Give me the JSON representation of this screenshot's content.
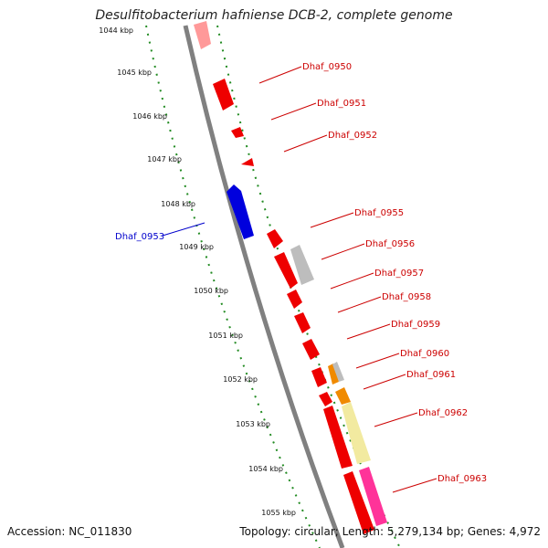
{
  "title": "Desulfitobacterium hafniense DCB-2, complete genome",
  "footer": {
    "accession": "Accession: NC_011830",
    "summary": "Topology: circular; Length: 5,279,134 bp; Genes: 4,972"
  },
  "scale_labels": [
    "1044 kbp",
    "1045 kbp",
    "1046 kbp",
    "1047 kbp",
    "1048 kbp",
    "1049 kbp",
    "1050 kbp",
    "1051 kbp",
    "1052 kbp",
    "1053 kbp",
    "1054 kbp",
    "1055 kbp"
  ],
  "gene_labels": [
    {
      "id": "Dhaf_0950",
      "color": "#cc0000"
    },
    {
      "id": "Dhaf_0951",
      "color": "#cc0000"
    },
    {
      "id": "Dhaf_0952",
      "color": "#cc0000"
    },
    {
      "id": "Dhaf_0953",
      "color": "#0000cc"
    },
    {
      "id": "Dhaf_0955",
      "color": "#cc0000"
    },
    {
      "id": "Dhaf_0956",
      "color": "#cc0000"
    },
    {
      "id": "Dhaf_0957",
      "color": "#cc0000"
    },
    {
      "id": "Dhaf_0958",
      "color": "#cc0000"
    },
    {
      "id": "Dhaf_0959",
      "color": "#cc0000"
    },
    {
      "id": "Dhaf_0960",
      "color": "#cc0000"
    },
    {
      "id": "Dhaf_0961",
      "color": "#cc0000"
    },
    {
      "id": "Dhaf_0962",
      "color": "#cc0000"
    },
    {
      "id": "Dhaf_0963",
      "color": "#cc0000"
    }
  ],
  "colors": {
    "backbone": "#808080",
    "tick_track": "#228b22",
    "gene_forward": "#ee0000",
    "gene_reverse": "#0000dd",
    "gene_grey": "#bdbdbd",
    "gene_orange": "#f08a00",
    "gene_yellow": "#f2eaa0",
    "gene_pink": "#ff3399"
  }
}
